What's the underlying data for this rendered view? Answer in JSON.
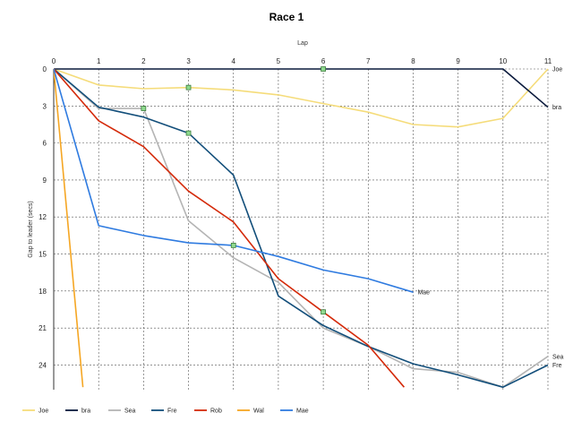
{
  "chart_data": {
    "type": "line",
    "title": "Race 1",
    "xlabel": "Lap",
    "ylabel": "Gap to leader (secs)",
    "xlim": [
      0,
      11
    ],
    "ylim": [
      0,
      26
    ],
    "y_reversed": true,
    "x_ticks": [
      "0",
      "1",
      "2",
      "3",
      "4",
      "5",
      "6",
      "7",
      "8",
      "9",
      "10",
      "11"
    ],
    "y_ticks": [
      "0",
      "3",
      "6",
      "9",
      "12",
      "15",
      "18",
      "21",
      "24"
    ],
    "grid": true,
    "legend_position": "bottom",
    "series": [
      {
        "name": "Joe",
        "color": "#f5dc7a",
        "x": [
          0,
          1,
          2,
          3,
          4,
          5,
          6,
          7,
          8,
          9,
          10,
          11
        ],
        "y": [
          0,
          1.3,
          1.6,
          1.5,
          1.7,
          2.1,
          2.8,
          3.5,
          4.5,
          4.7,
          4.0,
          0
        ],
        "end_label": "Joe"
      },
      {
        "name": "bra",
        "color": "#0a1a3c",
        "x": [
          0,
          1,
          2,
          3,
          4,
          5,
          6,
          7,
          8,
          9,
          10,
          11
        ],
        "y": [
          0,
          0,
          0,
          0,
          0,
          0,
          0,
          0,
          0,
          0,
          0,
          3.1
        ],
        "end_label": "bra"
      },
      {
        "name": "Sea",
        "color": "#b4b4b4",
        "x": [
          0,
          1,
          2,
          3,
          4,
          5,
          6,
          7,
          8,
          9,
          10,
          11
        ],
        "y": [
          0,
          3.2,
          3.2,
          12.3,
          15.3,
          17.3,
          21.0,
          22.5,
          24.3,
          24.6,
          25.8,
          23.3
        ],
        "end_label": "Sea"
      },
      {
        "name": "Fre",
        "color": "#124e7a",
        "x": [
          0,
          1,
          2,
          3,
          4,
          5,
          6,
          7,
          8,
          9,
          10,
          11
        ],
        "y": [
          0,
          3.1,
          3.9,
          5.2,
          8.6,
          18.4,
          20.8,
          22.5,
          23.9,
          24.8,
          25.8,
          24.0
        ],
        "end_label": "Fre"
      },
      {
        "name": "Rob",
        "color": "#d42a0a",
        "x": [
          0,
          1,
          2,
          3,
          4,
          5,
          6,
          7,
          7.8
        ],
        "y": [
          0,
          4.2,
          6.3,
          9.9,
          12.4,
          17.0,
          19.7,
          22.4,
          25.8
        ],
        "end_label": ""
      },
      {
        "name": "Wal",
        "color": "#f5a623",
        "x": [
          0,
          0.65
        ],
        "y": [
          0,
          25.8
        ],
        "end_label": ""
      },
      {
        "name": "Mae",
        "color": "#2f7be0",
        "x": [
          0,
          1,
          2,
          3,
          4,
          5,
          6,
          7,
          8
        ],
        "y": [
          0,
          12.7,
          13.5,
          14.1,
          14.3,
          15.2,
          16.3,
          17.0,
          18.1
        ],
        "end_label": "Mae"
      }
    ],
    "pit_markers": [
      {
        "x": 6,
        "y": 0
      },
      {
        "x": 3,
        "y": 1.5
      },
      {
        "x": 2,
        "y": 3.2
      },
      {
        "x": 3,
        "y": 5.2
      },
      {
        "x": 4,
        "y": 14.3
      },
      {
        "x": 6,
        "y": 19.7
      }
    ],
    "marker_color": "#8fd98f"
  }
}
